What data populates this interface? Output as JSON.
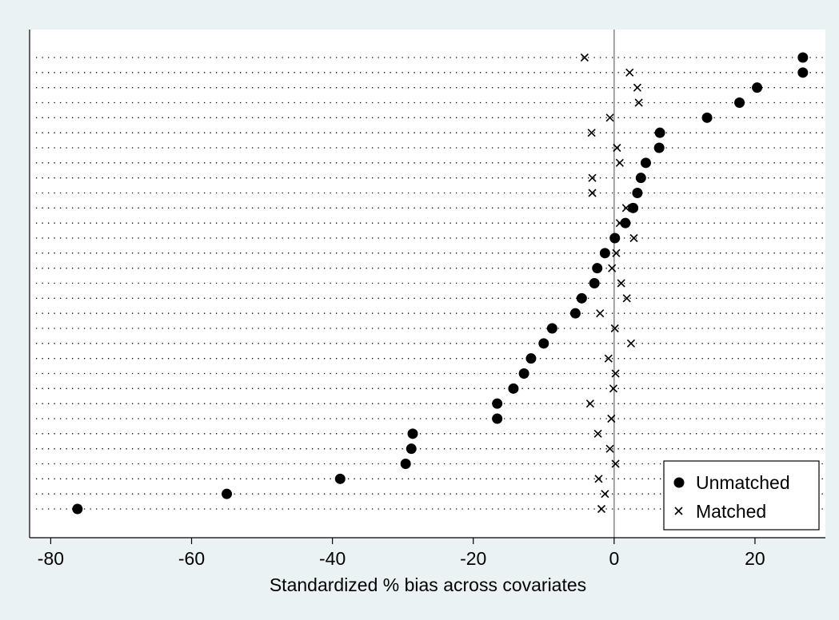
{
  "chart_data": {
    "type": "scatter",
    "title": "",
    "xlabel": "Standardized % bias across covariates",
    "ylabel": "",
    "xlim": [
      -83,
      30
    ],
    "xticks": [
      -80,
      -60,
      -40,
      -20,
      0,
      20
    ],
    "reference_line_x": 0,
    "grid": "horizontal dotted rows",
    "legend_position": "bottom-right",
    "series": [
      {
        "name": "Unmatched",
        "marker": "filled-circle",
        "values": [
          26.8,
          26.8,
          20.3,
          17.8,
          13.2,
          6.5,
          6.4,
          4.5,
          3.8,
          3.3,
          2.7,
          1.6,
          0.1,
          -1.3,
          -2.4,
          -2.8,
          -4.6,
          -5.5,
          -8.8,
          -10.0,
          -11.8,
          -12.8,
          -14.3,
          -16.6,
          -16.6,
          -28.6,
          -28.8,
          -29.6,
          -38.9,
          -55.0,
          -76.2
        ]
      },
      {
        "name": "Matched",
        "marker": "cross",
        "values": [
          -4.2,
          2.2,
          3.3,
          3.5,
          -0.6,
          -3.2,
          0.4,
          0.8,
          -3.1,
          -3.1,
          1.7,
          0.8,
          2.8,
          0.3,
          -0.3,
          1.0,
          1.8,
          -2.0,
          0.1,
          2.4,
          -0.8,
          0.2,
          -0.1,
          -3.4,
          -0.4,
          -2.3,
          -0.6,
          0.2,
          -2.2,
          -1.3,
          -1.8
        ]
      }
    ]
  }
}
